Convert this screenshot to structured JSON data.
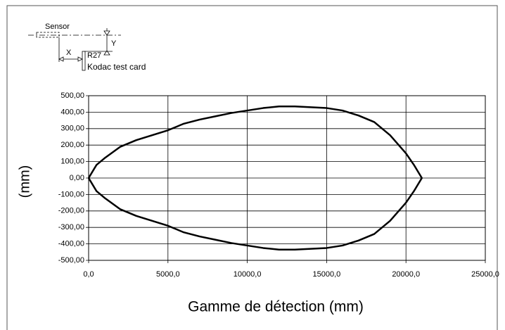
{
  "chart_data": {
    "type": "line",
    "xlabel": "Gamme de détection (mm)",
    "ylabel": "(mm)",
    "annotations": [
      "Sensor",
      "X",
      "Y",
      "R27",
      "Kodac test card"
    ],
    "series": [
      {
        "color": "#000000",
        "x": [
          0,
          500,
          1000,
          2000,
          3000,
          4000,
          5000,
          6000,
          7000,
          8000,
          9000,
          10000,
          11000,
          12000,
          13000,
          14000,
          15000,
          16000,
          17000,
          18000,
          19000,
          20000,
          20500,
          21000,
          20500,
          20000,
          19000,
          18000,
          17000,
          16000,
          15000,
          14000,
          13000,
          12000,
          11000,
          10000,
          9000,
          8000,
          7000,
          6000,
          5000,
          4000,
          3000,
          2000,
          1000,
          500,
          0
        ],
        "values": [
          0,
          80,
          120,
          190,
          230,
          260,
          290,
          330,
          355,
          375,
          395,
          410,
          425,
          435,
          435,
          430,
          425,
          410,
          380,
          340,
          260,
          150,
          80,
          0,
          -80,
          -150,
          -260,
          -340,
          -380,
          -410,
          -425,
          -430,
          -435,
          -435,
          -425,
          -410,
          -395,
          -375,
          -355,
          -330,
          -290,
          -260,
          -230,
          -190,
          -120,
          -80,
          0
        ]
      }
    ],
    "xlim": [
      0,
      25000
    ],
    "ylim": [
      -500,
      500
    ],
    "xticks": [
      {
        "value": 0,
        "label": "0,0"
      },
      {
        "value": 5000,
        "label": "5000,0"
      },
      {
        "value": 10000,
        "label": "10000,0"
      },
      {
        "value": 15000,
        "label": "15000,0"
      },
      {
        "value": 20000,
        "label": "20000,0"
      },
      {
        "value": 25000,
        "label": "25000,0"
      }
    ],
    "yticks": [
      {
        "value": 500,
        "label": "500,00"
      },
      {
        "value": 400,
        "label": "400,00"
      },
      {
        "value": 300,
        "label": "300,00"
      },
      {
        "value": 200,
        "label": "200,00"
      },
      {
        "value": 100,
        "label": "100,00"
      },
      {
        "value": 0,
        "label": "0,00"
      },
      {
        "value": -100,
        "label": "-100,00"
      },
      {
        "value": -200,
        "label": "-200,00"
      },
      {
        "value": -300,
        "label": "-300,00"
      },
      {
        "value": -400,
        "label": "-400,00"
      },
      {
        "value": -500,
        "label": "-500,00"
      }
    ],
    "grid": true
  }
}
